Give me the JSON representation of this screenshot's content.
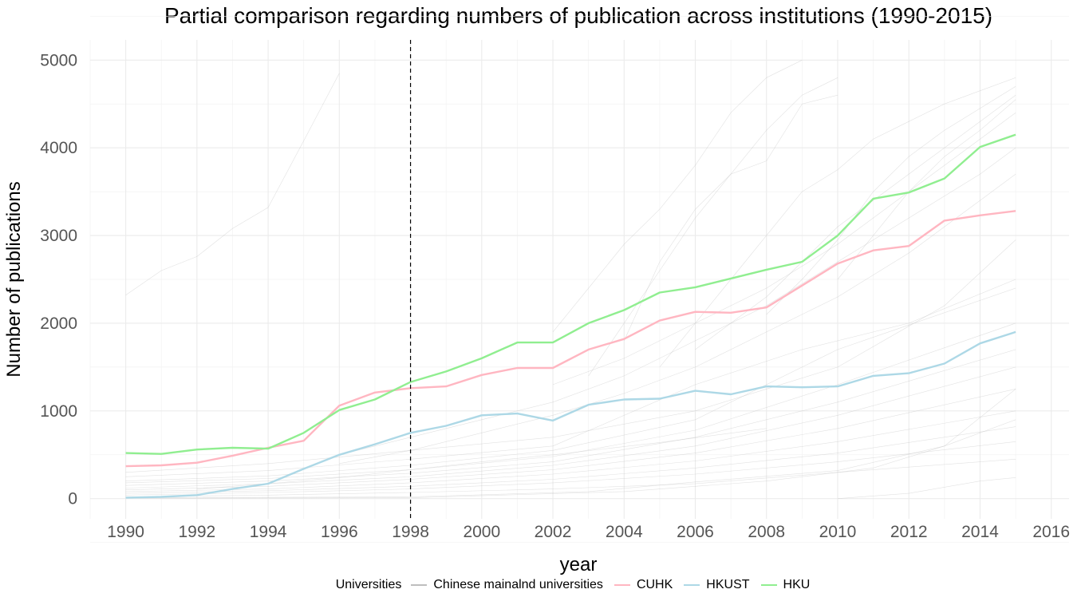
{
  "chart_data": {
    "type": "line",
    "title": "Partial comparison regarding numbers of publication across institutions (1990-2015)",
    "xlabel": "year",
    "ylabel": "Number of publications",
    "xlim": [
      1989,
      2016.5
    ],
    "ylim": [
      -230,
      5230
    ],
    "x_ticks": [
      1990,
      1992,
      1994,
      1996,
      1998,
      2000,
      2002,
      2004,
      2006,
      2008,
      2010,
      2012,
      2014,
      2016
    ],
    "y_ticks": [
      0,
      1000,
      2000,
      3000,
      4000,
      5000
    ],
    "grid": true,
    "vline_x": 1998,
    "legend_title": "Universities",
    "legend_position": "bottom",
    "years": [
      1990,
      1991,
      1992,
      1993,
      1994,
      1995,
      1996,
      1997,
      1998,
      1999,
      2000,
      2001,
      2002,
      2003,
      2004,
      2005,
      2006,
      2007,
      2008,
      2009,
      2010,
      2011,
      2012,
      2013,
      2014,
      2015
    ],
    "series": [
      {
        "name": "CUHK",
        "color": "#FFB6C1",
        "values": [
          370,
          380,
          410,
          490,
          580,
          660,
          1060,
          1210,
          1260,
          1280,
          1410,
          1490,
          1490,
          1700,
          1820,
          2030,
          2130,
          2120,
          2180,
          2430,
          2680,
          2830,
          2880,
          3170,
          3230,
          3280
        ]
      },
      {
        "name": "HKUST",
        "color": "#ADD8E6",
        "values": [
          10,
          20,
          40,
          110,
          170,
          340,
          500,
          620,
          750,
          830,
          950,
          970,
          890,
          1070,
          1130,
          1140,
          1230,
          1190,
          1280,
          1270,
          1280,
          1400,
          1430,
          1540,
          1770,
          1900
        ]
      },
      {
        "name": "HKU",
        "color": "#90EE90",
        "values": [
          520,
          510,
          560,
          580,
          570,
          750,
          1010,
          1130,
          1330,
          1450,
          1600,
          1780,
          1780,
          2000,
          2150,
          2350,
          2410,
          2510,
          2610,
          2700,
          3000,
          3420,
          3490,
          3650,
          4010,
          4150
        ]
      }
    ],
    "background_group": {
      "name": "Chinese mainalnd universities",
      "color": "#BEBEBE",
      "lines": [
        {
          "x": [
            1990,
            1991,
            1992,
            1993,
            1994,
            1995,
            1996
          ],
          "values": [
            2320,
            2600,
            2760,
            3080,
            3320,
            4080,
            4850
          ]
        },
        {
          "x": [
            2002,
            2003,
            2004,
            2005,
            2006,
            2007,
            2008,
            2009
          ],
          "values": [
            1900,
            2400,
            2900,
            3300,
            3800,
            4400,
            4800,
            5000
          ]
        },
        {
          "x": [
            2003,
            2004,
            2005,
            2006,
            2007,
            2008,
            2009,
            2010
          ],
          "values": [
            1400,
            2000,
            2600,
            3200,
            3700,
            4200,
            4600,
            4800
          ]
        },
        {
          "x": [
            2004,
            2005,
            2006,
            2007,
            2008,
            2009,
            2010
          ],
          "values": [
            1800,
            2700,
            3300,
            3700,
            3850,
            4500,
            4600
          ]
        },
        {
          "x": [
            2005,
            2006,
            2007,
            2008,
            2009,
            2010,
            2011,
            2012,
            2013,
            2014,
            2015
          ],
          "values": [
            1500,
            2000,
            2500,
            3000,
            3500,
            3750,
            4100,
            4300,
            4500,
            4650,
            4800
          ]
        },
        {
          "x": [
            2008,
            2009,
            2010,
            2011,
            2012,
            2013,
            2014,
            2015
          ],
          "values": [
            2100,
            2500,
            2950,
            3500,
            3900,
            4200,
            4450,
            4700
          ]
        },
        {
          "x": [
            2006,
            2007,
            2008,
            2009,
            2010,
            2011,
            2012,
            2013,
            2014,
            2015
          ],
          "values": [
            1700,
            2000,
            2300,
            2700,
            3100,
            3400,
            3700,
            4000,
            4300,
            4600
          ]
        },
        {
          "x": [
            2010,
            2011,
            2012,
            2013,
            2014,
            2015
          ],
          "values": [
            2500,
            3000,
            3500,
            3900,
            4200,
            4550
          ]
        },
        {
          "x": [
            2002,
            2004,
            2006,
            2008,
            2010,
            2012,
            2014,
            2015
          ],
          "values": [
            1300,
            1600,
            2000,
            2400,
            2900,
            3500,
            4100,
            4400
          ]
        },
        {
          "x": [
            1996,
            1998,
            2000,
            2002,
            2004,
            2006,
            2008,
            2010,
            2012,
            2014,
            2015
          ],
          "values": [
            500,
            700,
            900,
            1100,
            1400,
            1800,
            2200,
            2700,
            3200,
            3700,
            4000
          ]
        },
        {
          "x": [
            1996,
            1998,
            2000,
            2002,
            2004,
            2006,
            2008,
            2010,
            2012,
            2014,
            2015
          ],
          "values": [
            400,
            550,
            750,
            950,
            1200,
            1500,
            1900,
            2300,
            2800,
            3400,
            3700
          ]
        },
        {
          "x": [
            1990,
            1994,
            1998,
            2002,
            2006,
            2010,
            2013,
            2015
          ],
          "values": [
            300,
            400,
            550,
            700,
            1000,
            1500,
            2200,
            2950
          ]
        },
        {
          "x": [
            1990,
            1994,
            1998,
            2002,
            2006,
            2009,
            2012,
            2015
          ],
          "values": [
            250,
            320,
            450,
            600,
            1300,
            1700,
            2000,
            2500
          ]
        },
        {
          "x": [
            1990,
            1994,
            1998,
            2002,
            2006,
            2010,
            2015
          ],
          "values": [
            200,
            260,
            380,
            550,
            900,
            1700,
            2400
          ]
        },
        {
          "x": [
            1990,
            1994,
            1998,
            2002,
            2006,
            2010,
            2015
          ],
          "values": [
            180,
            230,
            330,
            480,
            780,
            1300,
            2000
          ]
        },
        {
          "x": [
            1990,
            1994,
            1998,
            2002,
            2006,
            2010,
            2015
          ],
          "values": [
            150,
            200,
            290,
            420,
            700,
            1100,
            1700
          ]
        },
        {
          "x": [
            1990,
            1994,
            1998,
            2002,
            2006,
            2010,
            2015
          ],
          "values": [
            120,
            170,
            250,
            380,
            600,
            950,
            1500
          ]
        },
        {
          "x": [
            1990,
            1994,
            1998,
            2002,
            2006,
            2010,
            2015
          ],
          "values": [
            100,
            140,
            220,
            330,
            520,
            800,
            1250
          ]
        },
        {
          "x": [
            1990,
            1994,
            1998,
            2002,
            2006,
            2010,
            2015
          ],
          "values": [
            80,
            110,
            180,
            280,
            430,
            650,
            1000
          ]
        },
        {
          "x": [
            1990,
            1994,
            1998,
            2002,
            2006,
            2010,
            2015
          ],
          "values": [
            60,
            90,
            140,
            220,
            350,
            520,
            820
          ]
        },
        {
          "x": [
            1990,
            1994,
            1998,
            2002,
            2006,
            2010,
            2015
          ],
          "values": [
            40,
            70,
            110,
            180,
            280,
            420,
            650
          ]
        },
        {
          "x": [
            1990,
            1994,
            1998,
            2002,
            2006,
            2010,
            2015
          ],
          "values": [
            20,
            40,
            70,
            110,
            170,
            300,
            450
          ]
        },
        {
          "x": [
            1990,
            1998,
            2003,
            2006,
            2010,
            2013,
            2015
          ],
          "values": [
            10,
            20,
            80,
            190,
            320,
            600,
            1250
          ]
        },
        {
          "x": [
            1990,
            1998,
            2004,
            2008,
            2011,
            2013,
            2015
          ],
          "values": [
            5,
            10,
            80,
            200,
            350,
            600,
            900
          ]
        },
        {
          "x": [
            2010,
            2012,
            2014,
            2015
          ],
          "values": [
            0,
            60,
            200,
            240
          ]
        },
        {
          "x": [
            1992,
            1994,
            1996,
            1998,
            2000,
            2002,
            2005,
            2008
          ],
          "values": [
            110,
            170,
            240,
            330,
            420,
            500,
            640,
            800
          ]
        }
      ]
    }
  }
}
